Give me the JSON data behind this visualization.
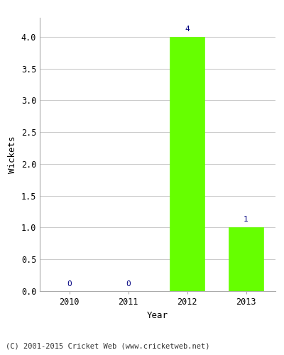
{
  "categories": [
    "2010",
    "2011",
    "2012",
    "2013"
  ],
  "values": [
    0,
    0,
    4,
    1
  ],
  "bar_color": "#66ff00",
  "bar_edge_color": "#66ff00",
  "title": "",
  "xlabel": "Year",
  "ylabel": "Wickets",
  "ylim": [
    0,
    4.3
  ],
  "yticks": [
    0.0,
    0.5,
    1.0,
    1.5,
    2.0,
    2.5,
    3.0,
    3.5,
    4.0
  ],
  "annotation_color": "#000080",
  "annotation_fontsize": 8,
  "footer": "(C) 2001-2015 Cricket Web (www.cricketweb.net)",
  "footer_fontsize": 7.5,
  "axis_label_fontsize": 9,
  "tick_fontsize": 8.5,
  "background_color": "#ffffff",
  "grid_color": "#cccccc"
}
